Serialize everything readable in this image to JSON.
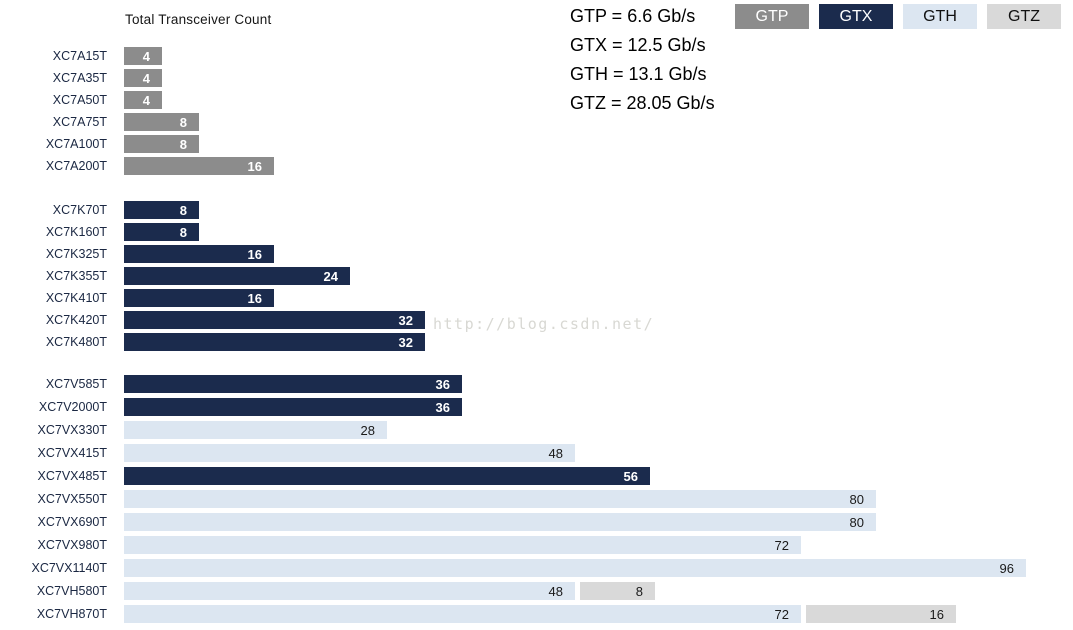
{
  "watermark": "http://blog.csdn.net/",
  "speed_notes": [
    "GTP = 6.6 Gb/s",
    "GTX = 12.5 Gb/s",
    "GTH = 13.1 Gb/s",
    "GTZ = 28.05 Gb/s"
  ],
  "chart_data": {
    "type": "bar",
    "orientation": "horizontal",
    "title": "Total Transceiver Count",
    "grid": false,
    "legend_position": "top-right",
    "series": [
      {
        "name": "GTP",
        "speed": "6.6 Gb/s",
        "color": "#8c8c8c",
        "label_color": "#ffffff"
      },
      {
        "name": "GTX",
        "speed": "12.5 Gb/s",
        "color": "#1b2b4d",
        "label_color": "#ffffff"
      },
      {
        "name": "GTH",
        "speed": "13.1 Gb/s",
        "color": "#dce6f1",
        "label_color": "#1a1a1a"
      },
      {
        "name": "GTZ",
        "speed": "28.05 Gb/s",
        "color": "#d9d9d9",
        "label_color": "#1a1a1a"
      }
    ],
    "groups": [
      {
        "rows": [
          {
            "device": "XC7A15T",
            "segments": [
              {
                "series": "GTP",
                "count": 4
              }
            ]
          },
          {
            "device": "XC7A35T",
            "segments": [
              {
                "series": "GTP",
                "count": 4
              }
            ]
          },
          {
            "device": "XC7A50T",
            "segments": [
              {
                "series": "GTP",
                "count": 4
              }
            ]
          },
          {
            "device": "XC7A75T",
            "segments": [
              {
                "series": "GTP",
                "count": 8
              }
            ]
          },
          {
            "device": "XC7A100T",
            "segments": [
              {
                "series": "GTP",
                "count": 8
              }
            ]
          },
          {
            "device": "XC7A200T",
            "segments": [
              {
                "series": "GTP",
                "count": 16
              }
            ]
          }
        ]
      },
      {
        "rows": [
          {
            "device": "XC7K70T",
            "segments": [
              {
                "series": "GTX",
                "count": 8
              }
            ]
          },
          {
            "device": "XC7K160T",
            "segments": [
              {
                "series": "GTX",
                "count": 8
              }
            ]
          },
          {
            "device": "XC7K325T",
            "segments": [
              {
                "series": "GTX",
                "count": 16
              }
            ]
          },
          {
            "device": "XC7K355T",
            "segments": [
              {
                "series": "GTX",
                "count": 24
              }
            ]
          },
          {
            "device": "XC7K410T",
            "segments": [
              {
                "series": "GTX",
                "count": 16
              }
            ]
          },
          {
            "device": "XC7K420T",
            "segments": [
              {
                "series": "GTX",
                "count": 32
              }
            ]
          },
          {
            "device": "XC7K480T",
            "segments": [
              {
                "series": "GTX",
                "count": 32
              }
            ]
          }
        ]
      },
      {
        "rows": [
          {
            "device": "XC7V585T",
            "segments": [
              {
                "series": "GTX",
                "count": 36
              }
            ]
          },
          {
            "device": "XC7V2000T",
            "segments": [
              {
                "series": "GTX",
                "count": 36
              }
            ]
          },
          {
            "device": "XC7VX330T",
            "segments": [
              {
                "series": "GTH",
                "count": 28
              }
            ]
          },
          {
            "device": "XC7VX415T",
            "segments": [
              {
                "series": "GTH",
                "count": 48
              }
            ]
          },
          {
            "device": "XC7VX485T",
            "segments": [
              {
                "series": "GTX",
                "count": 56
              }
            ]
          },
          {
            "device": "XC7VX550T",
            "segments": [
              {
                "series": "GTH",
                "count": 80
              }
            ]
          },
          {
            "device": "XC7VX690T",
            "segments": [
              {
                "series": "GTH",
                "count": 80
              }
            ]
          },
          {
            "device": "XC7VX980T",
            "segments": [
              {
                "series": "GTH",
                "count": 72
              }
            ]
          },
          {
            "device": "XC7VX1140T",
            "segments": [
              {
                "series": "GTH",
                "count": 96
              }
            ]
          },
          {
            "device": "XC7VH580T",
            "segments": [
              {
                "series": "GTH",
                "count": 48
              },
              {
                "series": "GTZ",
                "count": 8
              }
            ]
          },
          {
            "device": "XC7VH870T",
            "segments": [
              {
                "series": "GTH",
                "count": 72
              },
              {
                "series": "GTZ",
                "count": 16
              }
            ]
          }
        ]
      }
    ]
  }
}
